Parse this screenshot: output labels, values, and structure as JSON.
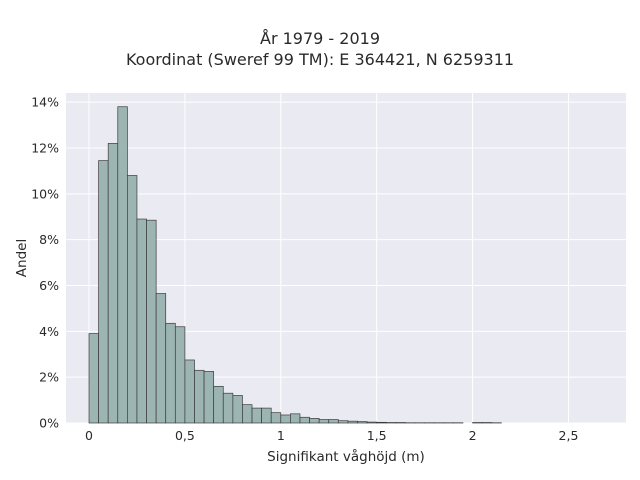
{
  "chart_data": {
    "type": "bar",
    "title_lines": [
      "År 1979 - 2019",
      "Koordinat (Sweref 99 TM): E 364421, N 6259311"
    ],
    "xlabel": "Signifikant våghöjd (m)",
    "ylabel": "Andel",
    "xlim": [
      -0.12,
      2.8
    ],
    "ylim": [
      0,
      14.4
    ],
    "x_ticks": [
      {
        "value": 0,
        "label": "0"
      },
      {
        "value": 0.5,
        "label": "0,5"
      },
      {
        "value": 1,
        "label": "1"
      },
      {
        "value": 1.5,
        "label": "1,5"
      },
      {
        "value": 2,
        "label": "2"
      },
      {
        "value": 2.5,
        "label": "2,5"
      }
    ],
    "y_ticks": [
      {
        "value": 0,
        "label": "0%"
      },
      {
        "value": 2,
        "label": "2%"
      },
      {
        "value": 4,
        "label": "4%"
      },
      {
        "value": 6,
        "label": "6%"
      },
      {
        "value": 8,
        "label": "8%"
      },
      {
        "value": 10,
        "label": "10%"
      },
      {
        "value": 12,
        "label": "12%"
      },
      {
        "value": 14,
        "label": "14%"
      }
    ],
    "bin_width": 0.05,
    "bin_starts": [
      0.0,
      0.05,
      0.1,
      0.15,
      0.2,
      0.25,
      0.3,
      0.35,
      0.4,
      0.45,
      0.5,
      0.55,
      0.6,
      0.65,
      0.7,
      0.75,
      0.8,
      0.85,
      0.9,
      0.95,
      1.0,
      1.05,
      1.1,
      1.15,
      1.2,
      1.25,
      1.3,
      1.35,
      1.4,
      1.45,
      1.5,
      1.55,
      1.6,
      1.65,
      1.7,
      1.75,
      1.8,
      1.85,
      1.9,
      1.95,
      2.0,
      2.05,
      2.1
    ],
    "values": [
      3.9,
      11.45,
      12.2,
      13.8,
      10.8,
      8.9,
      8.85,
      5.65,
      4.35,
      4.2,
      2.75,
      2.3,
      2.25,
      1.6,
      1.3,
      1.2,
      0.8,
      0.65,
      0.65,
      0.45,
      0.35,
      0.4,
      0.25,
      0.2,
      0.15,
      0.15,
      0.1,
      0.08,
      0.06,
      0.04,
      0.03,
      0.02,
      0.02,
      0.01,
      0.01,
      0.01,
      0.01,
      0.01,
      0.01,
      0.0,
      0.02,
      0.02,
      0.01
    ],
    "grid": true,
    "legend": "none",
    "colors": {
      "bar_fill": "#9cb5b3",
      "bar_edge": "#3b3b3b",
      "plot_background": "#eaeaf2",
      "grid": "#ffffff",
      "text": "#2a2a2a"
    }
  }
}
